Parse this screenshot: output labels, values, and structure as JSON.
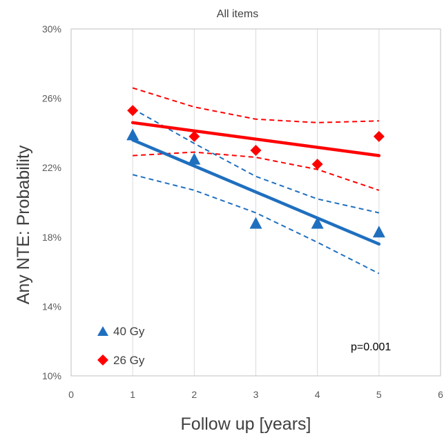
{
  "chart_data": {
    "type": "scatter",
    "title": "All items",
    "xlabel": "Follow up [years]",
    "ylabel": "Any NTE:  Probability",
    "xlim": [
      0,
      6
    ],
    "ylim": [
      0.1,
      0.3
    ],
    "x_ticks": [
      "0",
      "1",
      "2",
      "3",
      "4",
      "5",
      "6"
    ],
    "y_ticks": [
      "10%",
      "14%",
      "18%",
      "22%",
      "26%",
      "30%"
    ],
    "y_tick_values": [
      0.1,
      0.14,
      0.18,
      0.22,
      0.26,
      0.3
    ],
    "grid": "vertical",
    "legend_position": "bottom-left",
    "annotation": "p=0.001",
    "series": [
      {
        "name": "40 Gy",
        "color": "#1f6fbf",
        "marker": "triangle",
        "x": [
          1,
          2,
          3,
          4,
          5
        ],
        "y": [
          0.239,
          0.225,
          0.188,
          0.188,
          0.183
        ],
        "fit": {
          "x": [
            1,
            5
          ],
          "y": [
            0.236,
            0.176
          ]
        },
        "ci_upper": {
          "x": [
            1,
            2,
            3,
            4,
            5
          ],
          "y": [
            0.254,
            0.234,
            0.215,
            0.202,
            0.194
          ]
        },
        "ci_lower": {
          "x": [
            1,
            2,
            3,
            4,
            5
          ],
          "y": [
            0.216,
            0.207,
            0.194,
            0.177,
            0.159
          ]
        }
      },
      {
        "name": "26 Gy",
        "color": "#ff0000",
        "marker": "diamond",
        "x": [
          1,
          2,
          3,
          4,
          5
        ],
        "y": [
          0.253,
          0.238,
          0.23,
          0.222,
          0.238
        ],
        "fit": {
          "x": [
            1,
            5
          ],
          "y": [
            0.246,
            0.227
          ]
        },
        "ci_upper": {
          "x": [
            1,
            2,
            3,
            4,
            5
          ],
          "y": [
            0.266,
            0.255,
            0.248,
            0.246,
            0.247
          ]
        },
        "ci_lower": {
          "x": [
            1,
            2,
            3,
            4,
            5
          ],
          "y": [
            0.227,
            0.229,
            0.226,
            0.219,
            0.207
          ]
        }
      }
    ]
  }
}
